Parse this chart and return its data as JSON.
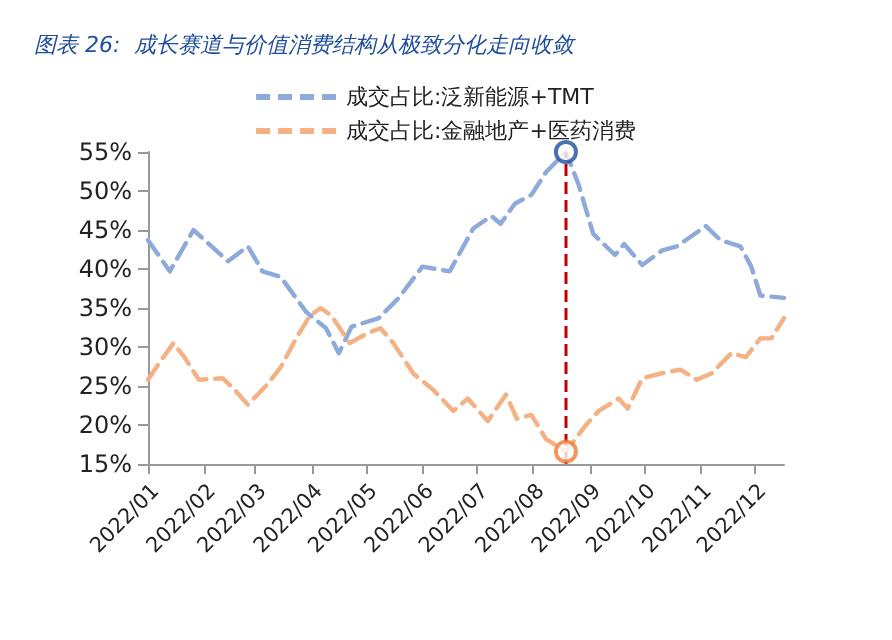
{
  "chart_data": {
    "type": "line",
    "title": "图表 26:  成长赛道与价值消费结构从极致分化走向收敛",
    "series": [
      {
        "name": "成交占比:泛新能源+TMT",
        "color": "#8eaadb",
        "x": [
          "2022-01-01",
          "2022-01-13",
          "2022-01-26",
          "2022-02-14",
          "2022-02-25",
          "2022-03-05",
          "2022-03-15",
          "2022-03-29",
          "2022-04-09",
          "2022-04-16",
          "2022-04-23",
          "2022-05-08",
          "2022-05-19",
          "2022-06-01",
          "2022-06-16",
          "2022-06-29",
          "2022-07-09",
          "2022-07-14",
          "2022-07-22",
          "2022-07-31",
          "2022-08-08",
          "2022-08-19",
          "2022-08-26",
          "2022-09-03",
          "2022-09-15",
          "2022-09-20",
          "2022-09-30",
          "2022-10-11",
          "2022-10-19",
          "2022-11-04",
          "2022-11-12",
          "2022-11-23",
          "2022-11-29",
          "2022-12-04",
          "2022-12-17"
        ],
        "values": [
          43.7,
          39.7,
          45,
          41,
          42.9,
          39.7,
          39,
          34.5,
          32.4,
          29.2,
          32.6,
          33.7,
          36.3,
          40.3,
          39.7,
          45.2,
          46.8,
          45.8,
          48.4,
          49.5,
          52.4,
          55,
          50.8,
          44.5,
          41.8,
          43.2,
          40.5,
          42.4,
          42.9,
          45.5,
          43.7,
          42.9,
          40.3,
          36.6,
          36.3
        ]
      },
      {
        "name": "成交占比:金融地产+医药消费",
        "color": "#f4b183",
        "x": [
          "2022-01-01",
          "2022-01-07",
          "2022-01-15",
          "2022-01-21",
          "2022-01-29",
          "2022-02-11",
          "2022-02-17",
          "2022-02-25",
          "2022-03-08",
          "2022-03-15",
          "2022-03-24",
          "2022-03-31",
          "2022-04-06",
          "2022-04-12",
          "2022-04-22",
          "2022-05-02",
          "2022-05-09",
          "2022-05-16",
          "2022-05-27",
          "2022-06-07",
          "2022-06-18",
          "2022-06-26",
          "2022-07-07",
          "2022-07-17",
          "2022-07-23",
          "2022-07-31",
          "2022-08-08",
          "2022-08-19",
          "2022-08-30",
          "2022-09-06",
          "2022-09-17",
          "2022-09-22",
          "2022-09-30",
          "2022-10-10",
          "2022-10-21",
          "2022-10-30",
          "2022-11-07",
          "2022-11-18",
          "2022-11-26",
          "2022-12-04",
          "2022-12-10",
          "2022-12-17"
        ],
        "values": [
          25.8,
          27.9,
          30.5,
          28.7,
          25.8,
          26,
          24.7,
          22.6,
          25.3,
          27.4,
          31.3,
          34,
          35,
          34,
          30.5,
          31.8,
          32.4,
          30.5,
          26.6,
          24.5,
          21.8,
          23.4,
          20.5,
          23.9,
          20.8,
          21.3,
          18.2,
          16.6,
          20,
          21.8,
          23.4,
          22.1,
          26,
          26.6,
          27.1,
          25.8,
          26.6,
          29.2,
          28.7,
          31.1,
          31.1,
          33.7
        ]
      },
      {
        "type": "scatter",
        "marker": "circle",
        "color": "#1f4e9c",
        "x": [
          "2022-08-19"
        ],
        "values": [
          55
        ]
      },
      {
        "type": "scatter",
        "marker": "circle",
        "color": "#ed7d31",
        "x": [
          "2022-08-19"
        ],
        "values": [
          16.6
        ]
      }
    ],
    "xlim": [
      "2022-01-01",
      "2022-12-17"
    ],
    "xticks": [
      {
        "value": "2022-01-01",
        "label": "2022/01"
      },
      {
        "value": "2022-02-01",
        "label": "2022/02"
      },
      {
        "value": "2022-03-01",
        "label": "2022/03"
      },
      {
        "value": "2022-04-01",
        "label": "2022/04"
      },
      {
        "value": "2022-05-01",
        "label": "2022/05"
      },
      {
        "value": "2022-06-01",
        "label": "2022/06"
      },
      {
        "value": "2022-07-01",
        "label": "2022/07"
      },
      {
        "value": "2022-08-01",
        "label": "2022/08"
      },
      {
        "value": "2022-09-01",
        "label": "2022/09"
      },
      {
        "value": "2022-10-01",
        "label": "2022/10"
      },
      {
        "value": "2022-11-01",
        "label": "2022/11"
      },
      {
        "value": "2022-12-01",
        "label": "2022/12"
      }
    ],
    "ylim": [
      15,
      55
    ],
    "yticks": [
      {
        "value": 15,
        "label": "15%"
      },
      {
        "value": 20,
        "label": "20%"
      },
      {
        "value": 25,
        "label": "25%"
      },
      {
        "value": 30,
        "label": "30%"
      },
      {
        "value": 35,
        "label": "35%"
      },
      {
        "value": 40,
        "label": "40%"
      },
      {
        "value": 45,
        "label": "45%"
      },
      {
        "value": 50,
        "label": "50%"
      },
      {
        "value": 55,
        "label": "55%"
      }
    ],
    "ref_lines": [
      {
        "axis": "x",
        "value": "2022-08-19",
        "color": "#c00000",
        "line_style": "dashed"
      }
    ],
    "grid": false,
    "legend": "top",
    "marker": "none",
    "line_style": "dashed"
  }
}
